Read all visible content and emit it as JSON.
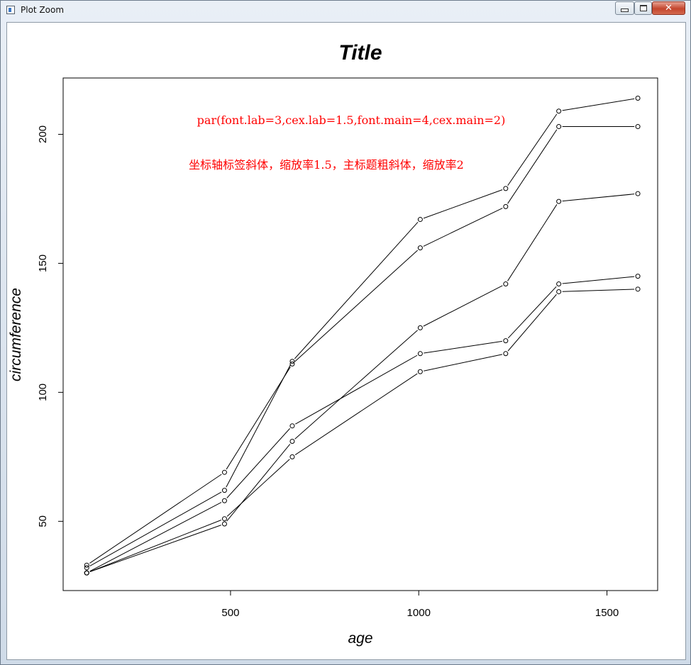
{
  "window": {
    "title": "Plot Zoom",
    "close_glyph": "✕",
    "icons": [
      "app-icon",
      "minimize-icon",
      "maximize-icon",
      "close-icon"
    ]
  },
  "chart_data": {
    "type": "line",
    "title": "Title",
    "xlabel": "age",
    "ylabel": "circumference",
    "xlim": [
      55.36,
      1634.64
    ],
    "ylim": [
      23.16,
      221.84
    ],
    "xticks": [
      500,
      1000,
      1500
    ],
    "yticks": [
      50,
      100,
      150,
      200
    ],
    "x": [
      118,
      484,
      664,
      1004,
      1231,
      1372,
      1582
    ],
    "series": [
      {
        "values": [
          30,
          58,
          87,
          115,
          120,
          142,
          145
        ]
      },
      {
        "values": [
          33,
          69,
          111,
          156,
          172,
          203,
          203
        ]
      },
      {
        "values": [
          30,
          51,
          75,
          108,
          115,
          139,
          140
        ]
      },
      {
        "values": [
          32,
          62,
          112,
          167,
          179,
          209,
          214
        ]
      },
      {
        "values": [
          30,
          49,
          81,
          125,
          142,
          174,
          177
        ]
      }
    ],
    "annotations": [
      "par(font.lab=3,cex.lab=1.5,font.main=4,cex.main=2)",
      "坐标轴标签斜体，缩放率1.5，主标题粗斜体，缩放率2"
    ],
    "colors": {
      "lines": "#000000",
      "annotation": "#ff0000",
      "background": "#ffffff"
    },
    "grid": false,
    "legend": "none"
  }
}
